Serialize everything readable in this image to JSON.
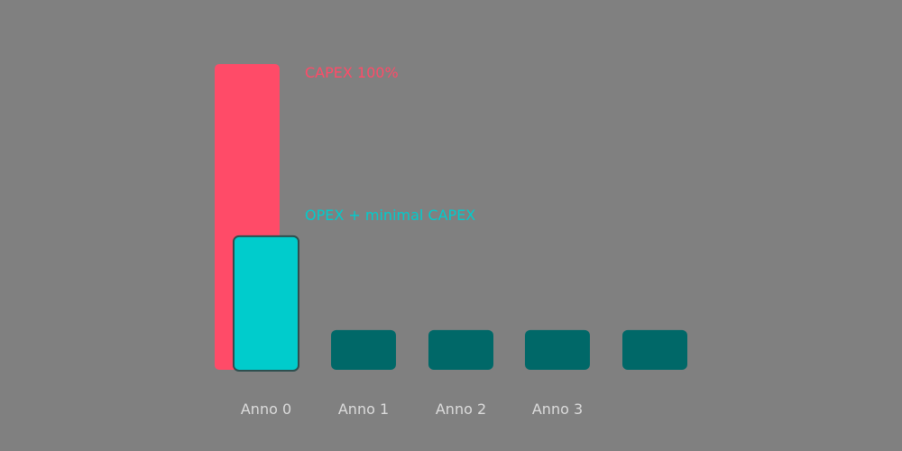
{
  "chart_data": {
    "type": "bar",
    "categories": [
      "Anno 0",
      "Anno 1",
      "Anno 2",
      "Anno 3",
      ""
    ],
    "series": [
      {
        "name": "CAPEX 100%",
        "values": [
          100,
          null,
          null,
          null,
          null
        ]
      },
      {
        "name": "OPEX + minimal CAPEX",
        "values": [
          44,
          13,
          13,
          13,
          13
        ]
      }
    ],
    "annotations": [
      "CAPEX 100%",
      "OPEX + minimal CAPEX"
    ],
    "title": "",
    "xlabel": "",
    "ylabel": "",
    "ylim": [
      0,
      100
    ],
    "grid": false,
    "colors": {
      "capex": "#ff4b68",
      "opex_highlight": "#00cccc",
      "opex": "#006868",
      "axis": "#c8c8c8",
      "tick_text": "#dcdcdc"
    }
  }
}
